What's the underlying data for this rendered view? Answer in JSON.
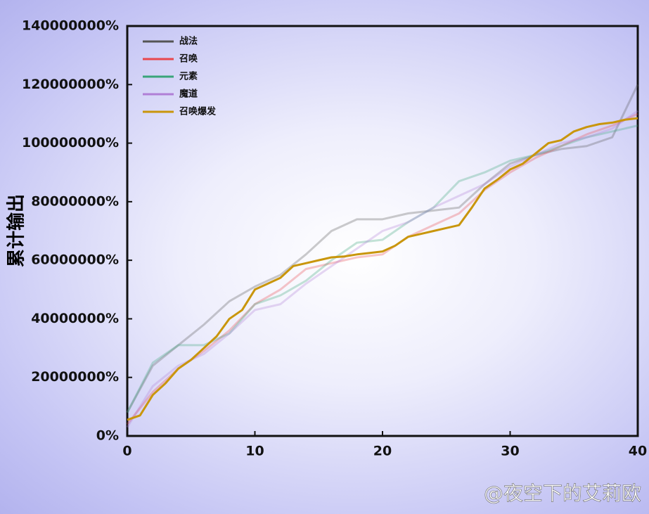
{
  "chart_data": {
    "type": "line",
    "y_label": "累计输出",
    "watermark": "@夜空下的艾莉欧",
    "xlim": [
      0,
      40
    ],
    "xticks": [
      0,
      10,
      20,
      30,
      40
    ],
    "ylim": [
      0,
      140000000
    ],
    "yticks": [
      {
        "value": 0,
        "label": "0%"
      },
      {
        "value": 20000000,
        "label": "20000000%"
      },
      {
        "value": 40000000,
        "label": "40000000%"
      },
      {
        "value": 60000000,
        "label": "60000000%"
      },
      {
        "value": 80000000,
        "label": "80000000%"
      },
      {
        "value": 100000000,
        "label": "100000000%"
      },
      {
        "value": 120000000,
        "label": "120000000%"
      },
      {
        "value": 140000000,
        "label": "140000000%"
      }
    ],
    "legend": "upper left",
    "series": [
      {
        "name": "战法",
        "color": "#555555",
        "opacity": 0.3,
        "x": [
          0,
          2,
          4,
          6,
          8,
          10,
          12,
          14,
          16,
          18,
          20,
          22,
          24,
          26,
          28,
          30,
          32,
          34,
          36,
          38,
          40
        ],
        "values": [
          8000000,
          24000000,
          31000000,
          38000000,
          46000000,
          51000000,
          55000000,
          62000000,
          70000000,
          74000000,
          74000000,
          76000000,
          77000000,
          78000000,
          86000000,
          93000000,
          96000000,
          98000000,
          99000000,
          102000000,
          120000000
        ]
      },
      {
        "name": "召唤",
        "color": "#e8474c",
        "opacity": 0.3,
        "x": [
          0,
          2,
          4,
          6,
          8,
          10,
          12,
          14,
          16,
          18,
          20,
          22,
          24,
          26,
          28,
          30,
          32,
          34,
          36,
          38,
          40
        ],
        "values": [
          4000000,
          15000000,
          23000000,
          29000000,
          36000000,
          45000000,
          50000000,
          57000000,
          59000000,
          61000000,
          62000000,
          68000000,
          72000000,
          76000000,
          84000000,
          90000000,
          95000000,
          99000000,
          103000000,
          106000000,
          110000000
        ]
      },
      {
        "name": "元素",
        "color": "#3aa57a",
        "opacity": 0.3,
        "x": [
          0,
          2,
          4,
          6,
          8,
          10,
          12,
          14,
          16,
          18,
          20,
          22,
          24,
          26,
          28,
          30,
          32,
          34,
          36,
          38,
          40
        ],
        "values": [
          8000000,
          25000000,
          31000000,
          31000000,
          35000000,
          45000000,
          48000000,
          53000000,
          60000000,
          66000000,
          67000000,
          73000000,
          78000000,
          87000000,
          90000000,
          94000000,
          96000000,
          99000000,
          102000000,
          104000000,
          106000000
        ]
      },
      {
        "name": "魔道",
        "color": "#b07fd6",
        "opacity": 0.3,
        "x": [
          0,
          2,
          4,
          6,
          8,
          10,
          12,
          14,
          16,
          18,
          20,
          22,
          24,
          26,
          28,
          30,
          32,
          34,
          36,
          38,
          40
        ],
        "values": [
          3000000,
          17000000,
          24000000,
          28000000,
          35000000,
          43000000,
          45000000,
          52000000,
          58000000,
          64000000,
          70000000,
          73000000,
          78000000,
          82000000,
          86000000,
          92000000,
          96000000,
          100000000,
          102000000,
          105000000,
          111000000
        ]
      },
      {
        "name": "召唤爆发",
        "color": "#c9960c",
        "opacity": 1,
        "x": [
          0,
          1,
          2,
          3,
          4,
          5,
          6,
          7,
          8,
          9,
          10,
          11,
          12,
          13,
          14,
          15,
          16,
          17,
          18,
          19,
          20,
          21,
          22,
          23,
          24,
          25,
          26,
          27,
          28,
          29,
          30,
          31,
          32,
          33,
          34,
          35,
          36,
          37,
          38,
          39,
          40
        ],
        "values": [
          5500000,
          7000000,
          14000000,
          18000000,
          23000000,
          26000000,
          30000000,
          34000000,
          40000000,
          43000000,
          50000000,
          52000000,
          54000000,
          58000000,
          59000000,
          60000000,
          61000000,
          61300000,
          62000000,
          62500000,
          63000000,
          65000000,
          68000000,
          69000000,
          70000000,
          71000000,
          72000000,
          78000000,
          84500000,
          87500000,
          91000000,
          93000000,
          96500000,
          100000000,
          101000000,
          104000000,
          105500000,
          106500000,
          107000000,
          108000000,
          108500000
        ]
      }
    ]
  }
}
